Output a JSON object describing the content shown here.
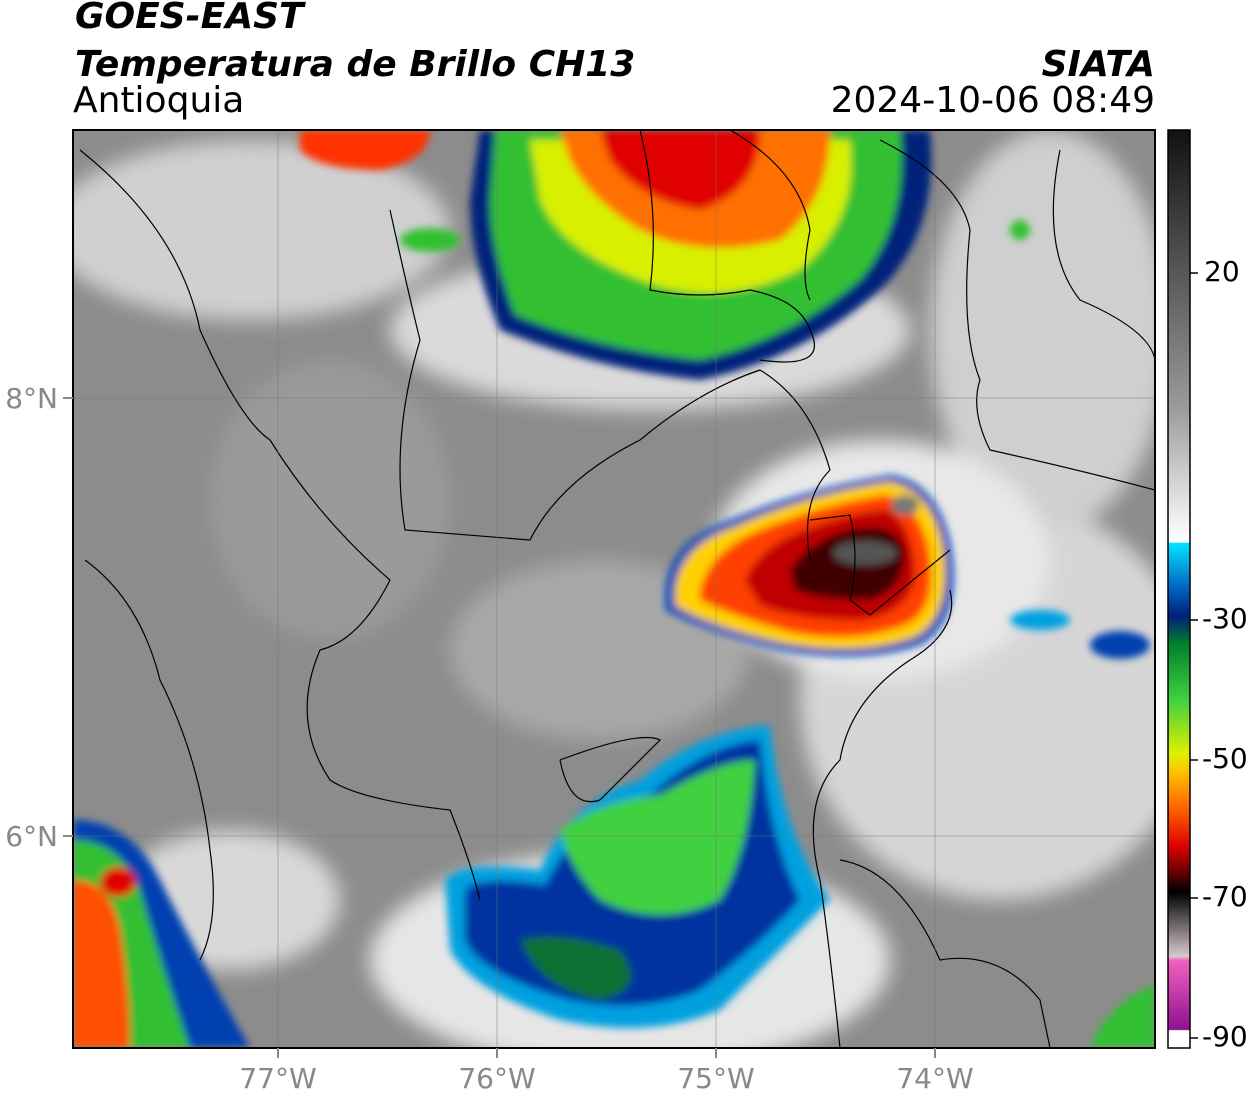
{
  "header": {
    "satellite": "GOES-EAST",
    "product": "Temperatura de Brillo CH13",
    "region": "Antioquia",
    "source": "SIATA",
    "datetime": "2024-10-06 08:49"
  },
  "map": {
    "lon_labels": [
      "77°W",
      "76°W",
      "75°W",
      "74°W"
    ],
    "lat_labels": [
      "8°N",
      "6°N"
    ]
  },
  "colorbar": {
    "tick_labels": [
      "20",
      "-30",
      "-50",
      "-70",
      "-90"
    ]
  }
}
